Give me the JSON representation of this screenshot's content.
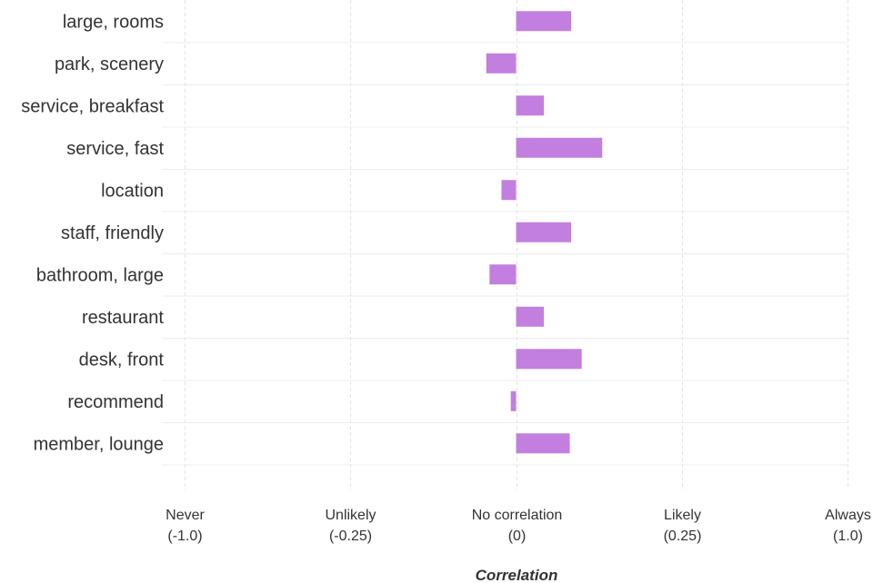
{
  "chart_data": {
    "type": "bar",
    "orientation": "horizontal",
    "categories": [
      "large, rooms",
      "park, scenery",
      "service, breakfast",
      "service, fast",
      "location",
      "staff, friendly",
      "bathroom, large",
      "restaurant",
      "desk, front",
      "recommend",
      "member, lounge"
    ],
    "values": [
      0.083,
      -0.045,
      0.042,
      0.13,
      -0.022,
      0.083,
      -0.04,
      0.042,
      0.099,
      -0.008,
      0.081
    ],
    "bar_color": "#c27fdf",
    "xlabel": "Correlation",
    "ticks": [
      {
        "value": -0.5,
        "label": "Never",
        "sublabel": "(-1.0)"
      },
      {
        "value": -0.25,
        "label": "Unlikely",
        "sublabel": "(-0.25)"
      },
      {
        "value": 0,
        "label": "No correlation",
        "sublabel": "(0)"
      },
      {
        "value": 0.25,
        "label": "Likely",
        "sublabel": "(0.25)"
      },
      {
        "value": 0.5,
        "label": "Always",
        "sublabel": "(1.0)"
      }
    ],
    "xlim": [
      -0.5,
      0.5
    ],
    "grid": true,
    "legend": "none"
  }
}
